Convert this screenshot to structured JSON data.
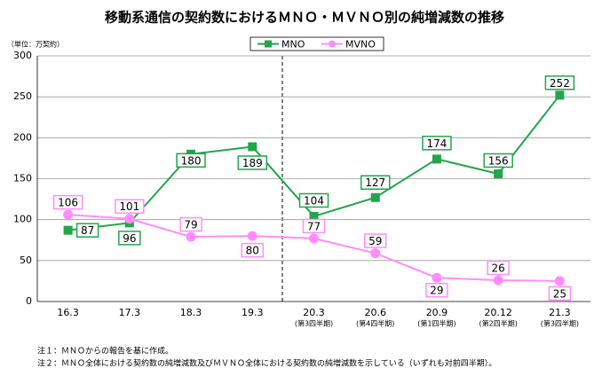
{
  "chart_data": {
    "type": "line",
    "title": "移動系通信の契約数におけるＭＮＯ・ＭＶＮＯ別の純増減数の推移",
    "unit_label": "（単位：万契約）",
    "categories": [
      "16.3",
      "17.3",
      "18.3",
      "19.3",
      "20.3",
      "20.6",
      "20.9",
      "20.12",
      "21.3"
    ],
    "category_sublabels": [
      null,
      null,
      null,
      null,
      "(第3四半期)",
      "(第4四半期)",
      "(第1四半期)",
      "(第2四半期)",
      "(第3四半期)"
    ],
    "series": [
      {
        "name": "MNO",
        "color": "#21a64a",
        "marker": "square",
        "values": [
          87,
          96,
          180,
          189,
          104,
          127,
          174,
          156,
          252
        ]
      },
      {
        "name": "MVNO",
        "color": "#ff8cff",
        "marker": "circle",
        "values": [
          106,
          101,
          79,
          80,
          77,
          59,
          29,
          26,
          25
        ]
      }
    ],
    "ylim": [
      0,
      300
    ],
    "yticks": [
      0,
      50,
      100,
      150,
      200,
      250,
      300
    ],
    "grid": true,
    "legend": "top",
    "notes": [
      "注１：ＭＮＯからの報告を基に作成。",
      "注２：ＭＮＯ全体における契約数の純増減数及びＭＶＮＯ全体における契約数の純増減数を示している（いずれも対前四半期）。"
    ]
  }
}
